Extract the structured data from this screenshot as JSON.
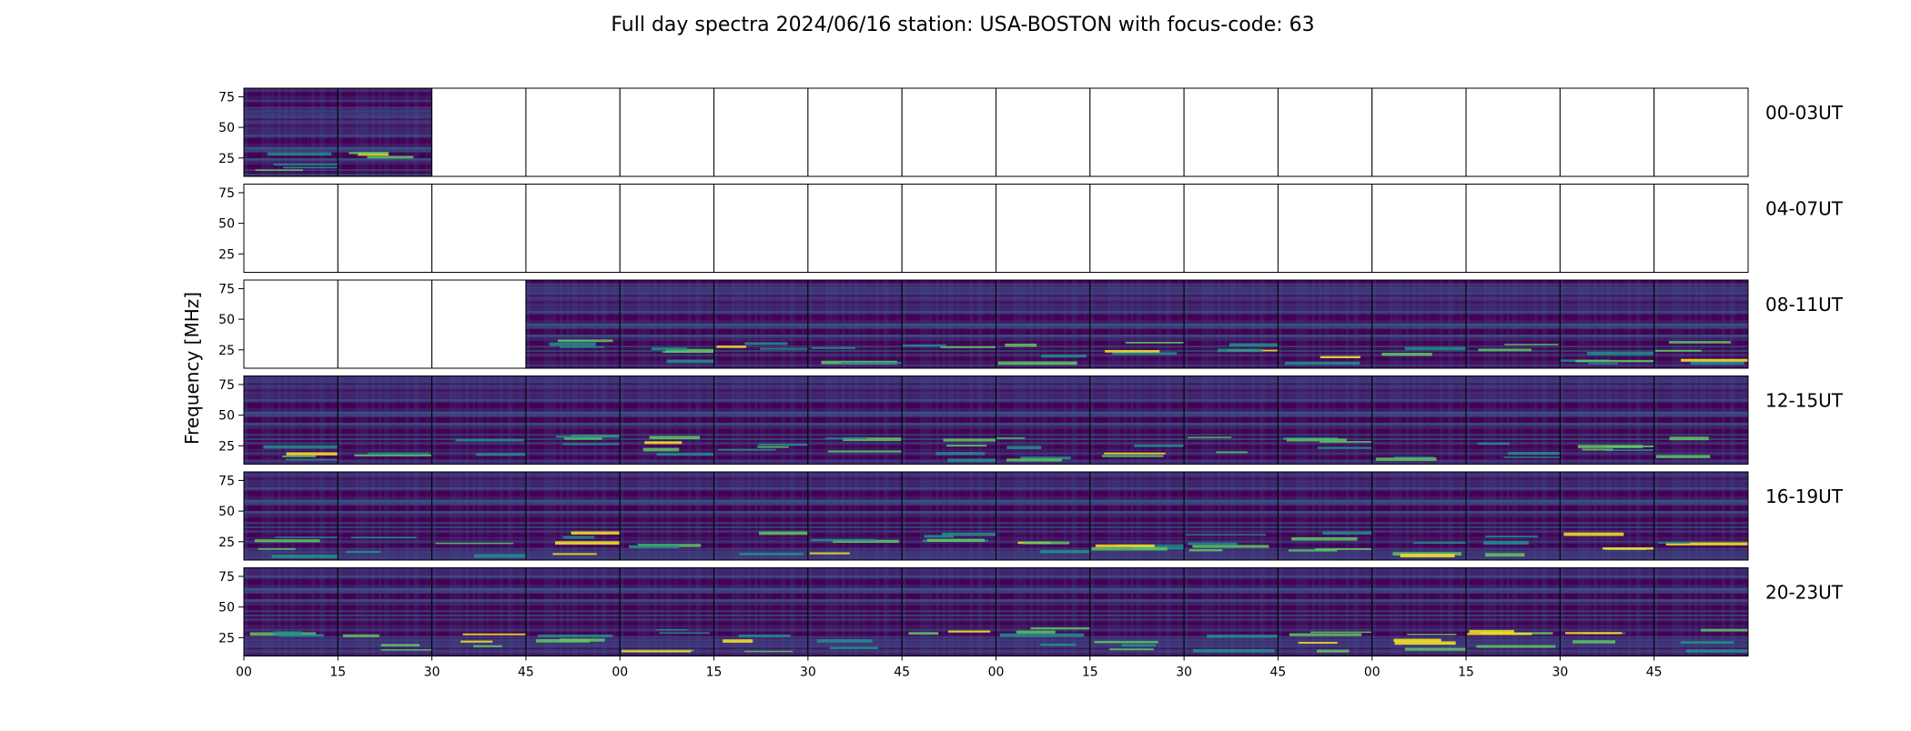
{
  "chart_data": {
    "type": "heatmap",
    "title": "Full day spectra 2024/06/16 station: USA-BOSTON with focus-code: 63",
    "ylabel": "Frequency [MHz]",
    "xlabel": "",
    "y_range_mhz": [
      10,
      82
    ],
    "y_ticks": [
      25,
      50,
      75
    ],
    "x_tick_labels": [
      "00",
      "15",
      "30",
      "45",
      "00",
      "15",
      "30",
      "45",
      "00",
      "15",
      "30",
      "45",
      "00",
      "15",
      "30",
      "45"
    ],
    "panels_per_row": 16,
    "panel_minutes": 15,
    "colormap": "viridis",
    "colors": {
      "low": "#440154",
      "mid_low": "#3b528b",
      "mid": "#21918c",
      "mid_high": "#5ec962",
      "high": "#fde725",
      "empty": "#ffffff"
    },
    "rows": [
      {
        "label": "00-03UT",
        "panels_with_data": [
          true,
          true,
          false,
          false,
          false,
          false,
          false,
          false,
          false,
          false,
          false,
          false,
          false,
          false,
          false,
          false
        ]
      },
      {
        "label": "04-07UT",
        "panels_with_data": [
          false,
          false,
          false,
          false,
          false,
          false,
          false,
          false,
          false,
          false,
          false,
          false,
          false,
          false,
          false,
          false
        ]
      },
      {
        "label": "08-11UT",
        "panels_with_data": [
          false,
          false,
          false,
          true,
          true,
          true,
          true,
          true,
          true,
          true,
          true,
          true,
          true,
          true,
          true,
          true
        ]
      },
      {
        "label": "12-15UT",
        "panels_with_data": [
          true,
          true,
          true,
          true,
          true,
          true,
          true,
          true,
          true,
          true,
          true,
          true,
          true,
          true,
          true,
          true
        ]
      },
      {
        "label": "16-19UT",
        "panels_with_data": [
          true,
          true,
          true,
          true,
          true,
          true,
          true,
          true,
          true,
          true,
          true,
          true,
          true,
          true,
          true,
          true
        ]
      },
      {
        "label": "20-23UT",
        "panels_with_data": [
          true,
          true,
          true,
          true,
          true,
          true,
          true,
          true,
          true,
          true,
          true,
          true,
          true,
          true,
          true,
          true
        ]
      }
    ]
  }
}
